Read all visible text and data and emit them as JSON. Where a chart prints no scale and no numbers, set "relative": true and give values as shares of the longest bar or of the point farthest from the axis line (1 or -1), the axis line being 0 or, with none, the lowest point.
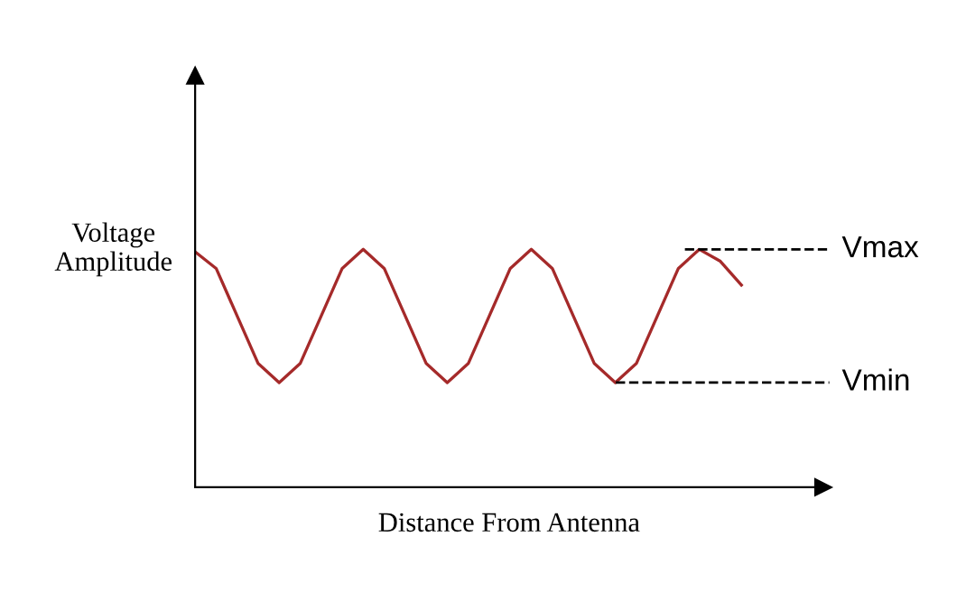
{
  "chart_data": {
    "type": "line",
    "relative": true,
    "xlabel": "Distance From Antenna",
    "ylabel": "Voltage\nAmplitude",
    "categories": [
      null,
      null,
      null,
      null,
      null,
      null,
      null,
      null,
      null,
      null,
      null,
      null,
      null,
      null,
      null,
      null,
      null,
      null,
      null,
      null,
      null,
      null,
      null,
      null,
      null,
      null,
      null
    ],
    "series": [
      {
        "color": "#a52a2a",
        "values": [
          0.99,
          0.92,
          0.72,
          0.52,
          0.44,
          0.52,
          0.72,
          0.92,
          1,
          0.92,
          0.72,
          0.52,
          0.44,
          0.52,
          0.72,
          0.92,
          1,
          0.92,
          0.72,
          0.52,
          0.44,
          0.52,
          0.72,
          0.92,
          1,
          0.95,
          0.85
        ]
      }
    ],
    "ref_lines": [
      {
        "axis": "y",
        "value": 1,
        "label": "Vmax",
        "color": "#000000",
        "line_style": "dashed"
      },
      {
        "axis": "y",
        "value": 0.44,
        "label": "Vmin",
        "color": "#000000",
        "line_style": "dashed"
      }
    ],
    "marker": "none",
    "line_style": "solid"
  }
}
